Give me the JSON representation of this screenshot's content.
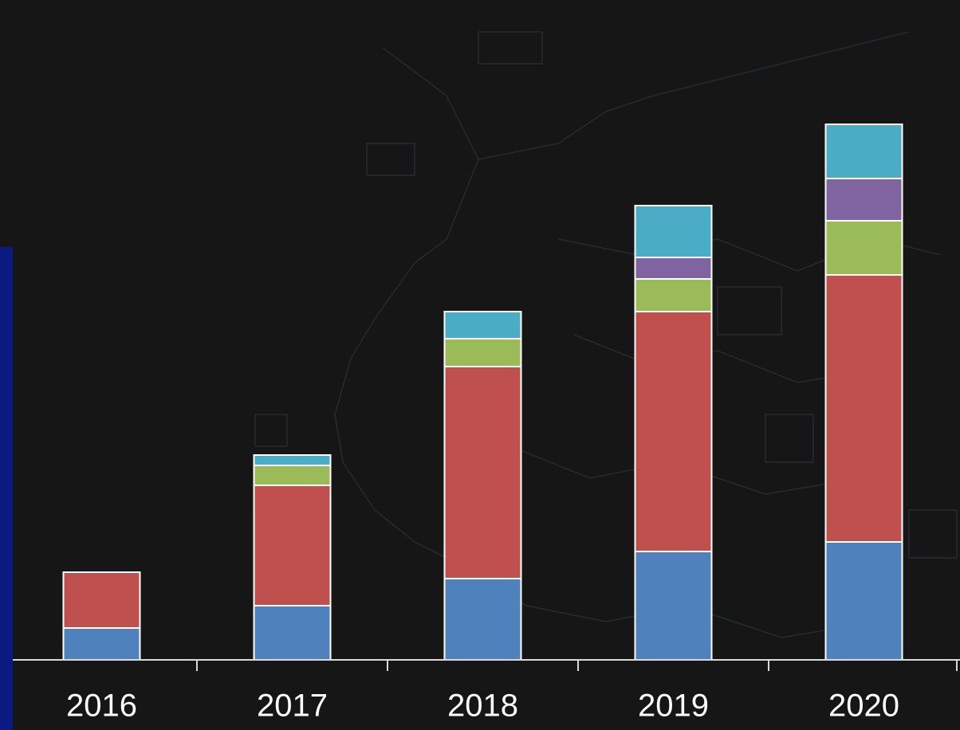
{
  "chart_data": {
    "type": "stacked-bar",
    "categories": [
      "2016",
      "2017",
      "2018",
      "2019",
      "2020"
    ],
    "series": [
      {
        "color": "#4f81bd",
        "values": [
          4.0,
          6.8,
          10.2,
          13.6,
          14.8
        ]
      },
      {
        "color": "#c0504d",
        "values": [
          7.0,
          15.1,
          26.6,
          30.1,
          33.5
        ]
      },
      {
        "color": "#9bbb59",
        "values": [
          0,
          2.5,
          3.5,
          4.1,
          6.8
        ]
      },
      {
        "color": "#8064a2",
        "values": [
          0,
          0,
          0,
          2.7,
          5.3
        ]
      },
      {
        "color": "#4bacc6",
        "values": [
          0,
          1.3,
          3.4,
          6.5,
          6.8
        ]
      }
    ],
    "ylim": [
      0,
      70
    ]
  }
}
